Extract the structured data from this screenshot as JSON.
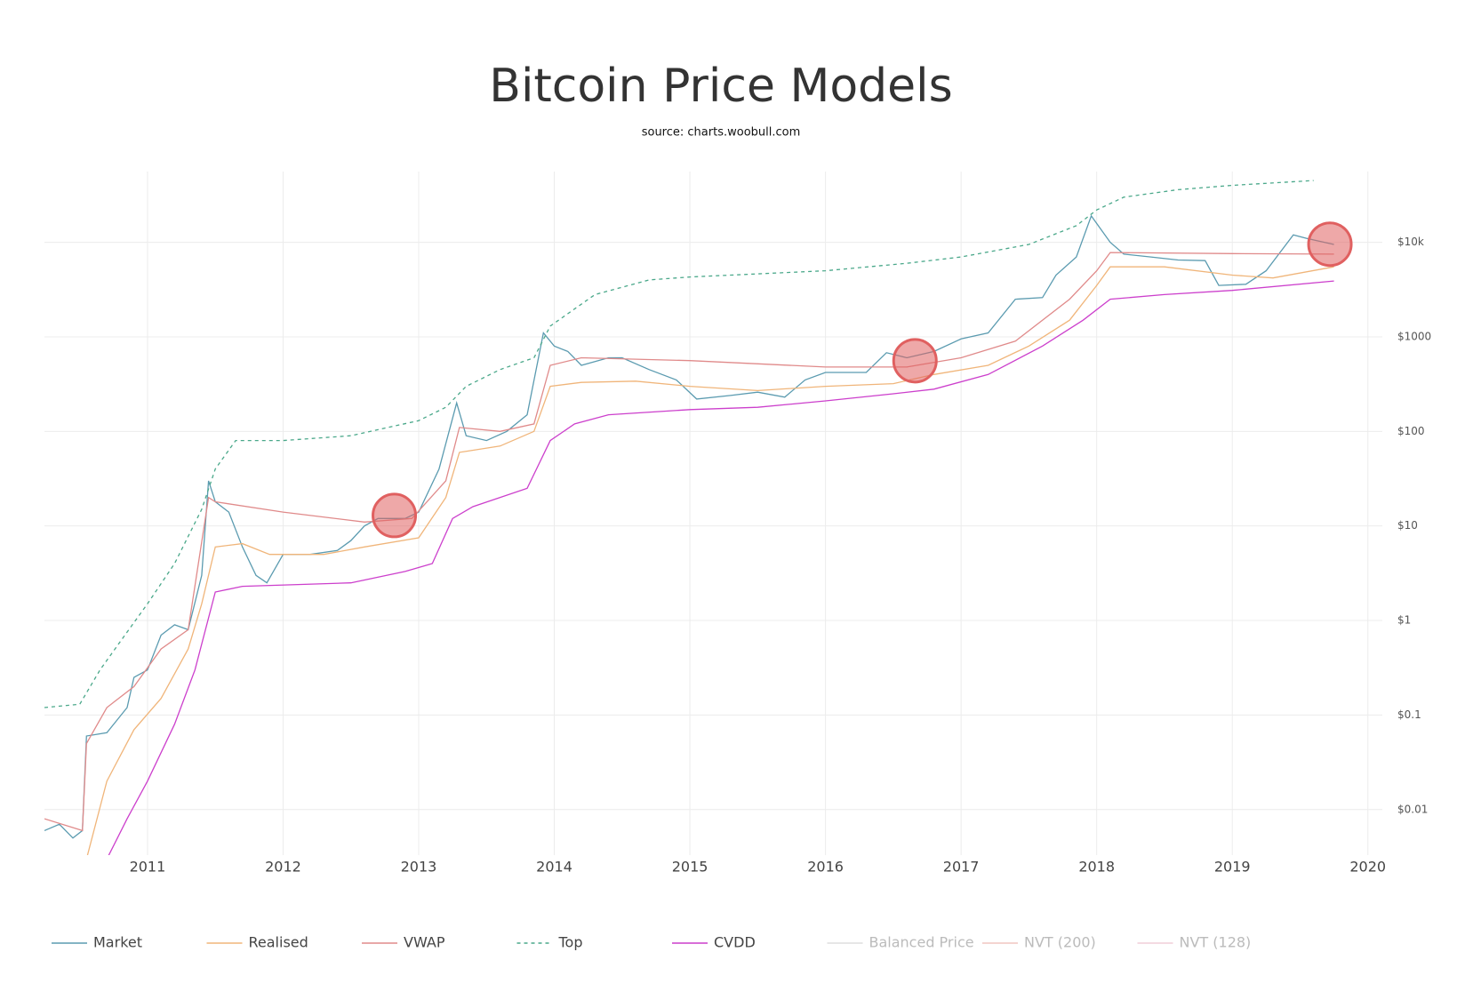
{
  "chart_data": {
    "type": "line",
    "title": "Bitcoin Price Models",
    "subtitle": "source: charts.woobull.com",
    "log_y": true,
    "grid": true,
    "legend_position": "bottom",
    "xlim": [
      2010.24,
      2020.1
    ],
    "xticks": [
      2011,
      2012,
      2013,
      2014,
      2015,
      2016,
      2017,
      2018,
      2019,
      2020
    ],
    "ylim": [
      0.0033,
      56000
    ],
    "yticks": [
      {
        "value": 0.01,
        "label": "$0.01"
      },
      {
        "value": 0.1,
        "label": "$0.1"
      },
      {
        "value": 1,
        "label": "$1"
      },
      {
        "value": 10,
        "label": "$10"
      },
      {
        "value": 100,
        "label": "$100"
      },
      {
        "value": 1000,
        "label": "$1000"
      },
      {
        "value": 10000,
        "label": "$10k"
      }
    ],
    "series": [
      {
        "name": "Market",
        "color": "#5b9bb0",
        "dashed": false,
        "x": [
          2010.24,
          2010.35,
          2010.45,
          2010.52,
          2010.55,
          2010.7,
          2010.85,
          2010.9,
          2011.0,
          2011.1,
          2011.2,
          2011.3,
          2011.4,
          2011.45,
          2011.5,
          2011.6,
          2011.7,
          2011.8,
          2011.88,
          2012.0,
          2012.2,
          2012.4,
          2012.5,
          2012.6,
          2012.7,
          2012.9,
          2013.0,
          2013.15,
          2013.28,
          2013.35,
          2013.5,
          2013.65,
          2013.8,
          2013.92,
          2014.0,
          2014.1,
          2014.2,
          2014.4,
          2014.5,
          2014.7,
          2014.9,
          2015.05,
          2015.3,
          2015.5,
          2015.7,
          2015.85,
          2016.0,
          2016.3,
          2016.45,
          2016.6,
          2016.8,
          2017.0,
          2017.2,
          2017.4,
          2017.6,
          2017.7,
          2017.85,
          2017.96,
          2018.1,
          2018.2,
          2018.4,
          2018.6,
          2018.8,
          2018.9,
          2019.1,
          2019.25,
          2019.45,
          2019.55,
          2019.75
        ],
        "values": [
          0.006,
          0.007,
          0.005,
          0.006,
          0.06,
          0.065,
          0.12,
          0.25,
          0.3,
          0.7,
          0.9,
          0.8,
          3,
          30,
          18,
          14,
          6,
          3,
          2.5,
          5,
          5,
          5.5,
          7,
          10,
          12,
          12,
          14,
          40,
          200,
          90,
          80,
          100,
          150,
          1100,
          800,
          700,
          500,
          600,
          600,
          450,
          350,
          220,
          240,
          260,
          230,
          350,
          420,
          420,
          680,
          600,
          700,
          950,
          1100,
          2500,
          2600,
          4500,
          7000,
          19000,
          10000,
          7500,
          7000,
          6500,
          6400,
          3500,
          3600,
          5000,
          12000,
          11000,
          9500
        ]
      },
      {
        "name": "Realised",
        "color": "#f0b57a",
        "dashed": false,
        "x": [
          2010.55,
          2010.7,
          2010.9,
          2011.1,
          2011.3,
          2011.4,
          2011.5,
          2011.7,
          2011.9,
          2012.3,
          2012.6,
          2013.0,
          2013.2,
          2013.3,
          2013.6,
          2013.85,
          2013.97,
          2014.2,
          2014.6,
          2015.0,
          2015.5,
          2016.0,
          2016.5,
          2016.8,
          2017.2,
          2017.5,
          2017.8,
          2018.0,
          2018.1,
          2018.5,
          2019.0,
          2019.3,
          2019.75
        ],
        "values": [
          0.003,
          0.02,
          0.07,
          0.15,
          0.5,
          1.5,
          6,
          6.5,
          5,
          5,
          6,
          7.5,
          20,
          60,
          70,
          100,
          300,
          330,
          340,
          300,
          270,
          300,
          320,
          400,
          500,
          800,
          1500,
          3500,
          5500,
          5500,
          4500,
          4200,
          5500
        ]
      },
      {
        "name": "VWAP",
        "color": "#e08a8a",
        "dashed": false,
        "x": [
          2010.24,
          2010.52,
          2010.55,
          2010.7,
          2010.9,
          2011.1,
          2011.3,
          2011.45,
          2011.5,
          2012.0,
          2012.6,
          2012.95,
          2013.2,
          2013.3,
          2013.6,
          2013.85,
          2013.97,
          2014.2,
          2015.0,
          2016.0,
          2016.6,
          2017.0,
          2017.4,
          2017.8,
          2018.0,
          2018.1,
          2019.0,
          2019.75
        ],
        "values": [
          0.008,
          0.006,
          0.05,
          0.12,
          0.2,
          0.5,
          0.8,
          20,
          18,
          14,
          11,
          12,
          30,
          110,
          100,
          120,
          500,
          600,
          560,
          480,
          480,
          600,
          900,
          2500,
          5000,
          7800,
          7600,
          7500
        ]
      },
      {
        "name": "Top",
        "color": "#4aa88a",
        "dashed": true,
        "x": [
          2010.24,
          2010.5,
          2010.65,
          2010.8,
          2011.0,
          2011.2,
          2011.4,
          2011.5,
          2011.65,
          2012.0,
          2012.5,
          2013.0,
          2013.2,
          2013.35,
          2013.6,
          2013.85,
          2013.97,
          2014.3,
          2014.7,
          2015.0,
          2016.0,
          2016.6,
          2017.0,
          2017.5,
          2017.85,
          2018.0,
          2018.2,
          2018.6,
          2019.0,
          2019.6
        ],
        "values": [
          0.12,
          0.13,
          0.3,
          0.6,
          1.5,
          4,
          15,
          40,
          80,
          80,
          90,
          130,
          180,
          300,
          450,
          600,
          1300,
          2800,
          4000,
          4300,
          5000,
          6000,
          7000,
          9500,
          15000,
          22000,
          30000,
          36000,
          40000,
          45000
        ]
      },
      {
        "name": "CVDD",
        "color": "#cc3fcc",
        "dashed": false,
        "x": [
          2010.7,
          2010.85,
          2011.0,
          2011.2,
          2011.35,
          2011.5,
          2011.7,
          2012.5,
          2012.9,
          2013.1,
          2013.25,
          2013.4,
          2013.8,
          2013.97,
          2014.15,
          2014.4,
          2015.0,
          2015.5,
          2016.0,
          2016.5,
          2016.8,
          2017.2,
          2017.6,
          2017.9,
          2018.1,
          2018.5,
          2019.0,
          2019.75
        ],
        "values": [
          0.003,
          0.008,
          0.02,
          0.08,
          0.3,
          2,
          2.3,
          2.5,
          3.3,
          4,
          12,
          16,
          25,
          80,
          120,
          150,
          170,
          180,
          210,
          250,
          280,
          400,
          800,
          1500,
          2500,
          2800,
          3100,
          3900
        ]
      }
    ],
    "hidden_series": [
      {
        "name": "Balanced Price",
        "color": "#cccccc"
      },
      {
        "name": "NVT (200)",
        "color": "#e8a8a0"
      },
      {
        "name": "NVT (128)",
        "color": "#e8b4c4"
      }
    ],
    "highlights": {
      "color": "#e06060",
      "x": [
        2012.82,
        2016.66,
        2019.72
      ],
      "values": [
        12.9,
        559,
        9550
      ]
    }
  }
}
